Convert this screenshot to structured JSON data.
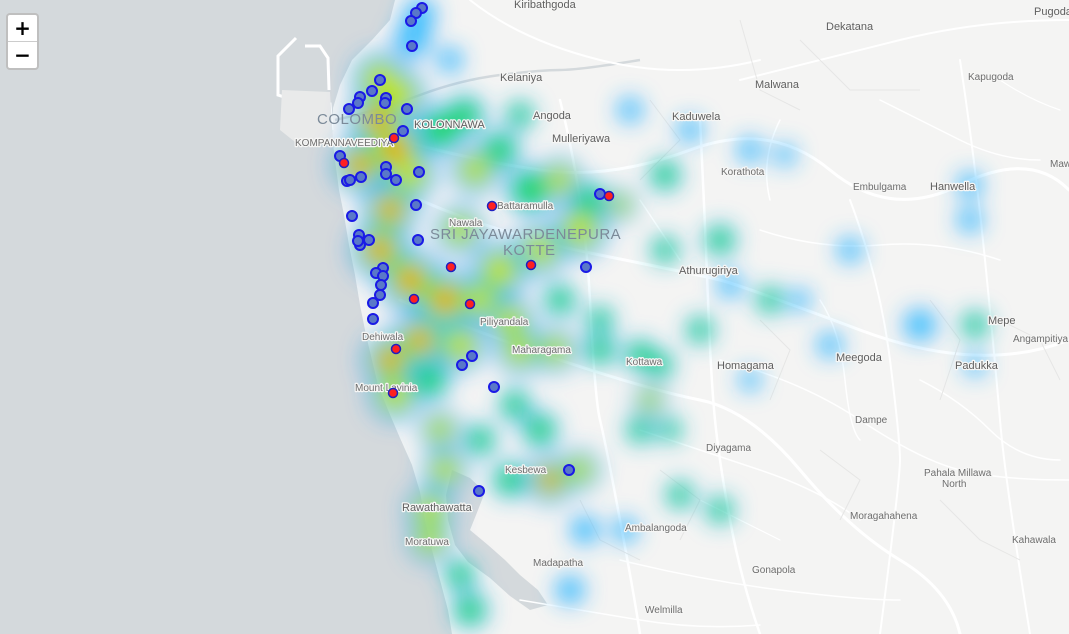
{
  "zoom_controls": {
    "zoom_in_label": "+",
    "zoom_out_label": "−"
  },
  "colors": {
    "water": "#d4d9dc",
    "land": "#f4f4f3",
    "road": "#ffffff",
    "heat_gradient": [
      "#0000ff",
      "#00ffff",
      "#00ff00",
      "#ffff00",
      "#ff0000"
    ],
    "marker_blue_fill": "#5a78c8",
    "marker_blue_stroke": "#1a1ae6",
    "marker_red_fill": "#ff2020",
    "marker_red_stroke": "#2020c0"
  },
  "place_labels": [
    "Kiribathgoda",
    "Dekatana",
    "Pugoda",
    "Kelaniya",
    "Malwana",
    "Kapugoda",
    "COLOMBO",
    "KOLONNAWA",
    "Angoda",
    "Kaduwela",
    "KOMPANNAVEEDIYA",
    "Mulleriyawa",
    "Korathota",
    "Embulgama",
    "Hanwella",
    "Battaramulla",
    "Nawala",
    "SRI JAYAWARDENEPURA",
    "KOTTE",
    "Athurugiriya",
    "Mawa",
    "Mepe",
    "Angampitiya",
    "Dehiwala",
    "Maharagama",
    "Kottawa",
    "Homagama",
    "Meegoda",
    "Padukka",
    "Mount Lavinia",
    "Dampe",
    "Diyagama",
    "Piliyandala",
    "Kesbewa",
    "Pahala Millawa North",
    "Rawathawatta",
    "Moragahahena",
    "Moratuwa",
    "Ambalangoda",
    "Kahawala",
    "Madapatha",
    "Gonapola",
    "Welmilla"
  ],
  "heatmap_intensity_note": "",
  "markers": {
    "blue_count": 54,
    "red_count": 11
  }
}
